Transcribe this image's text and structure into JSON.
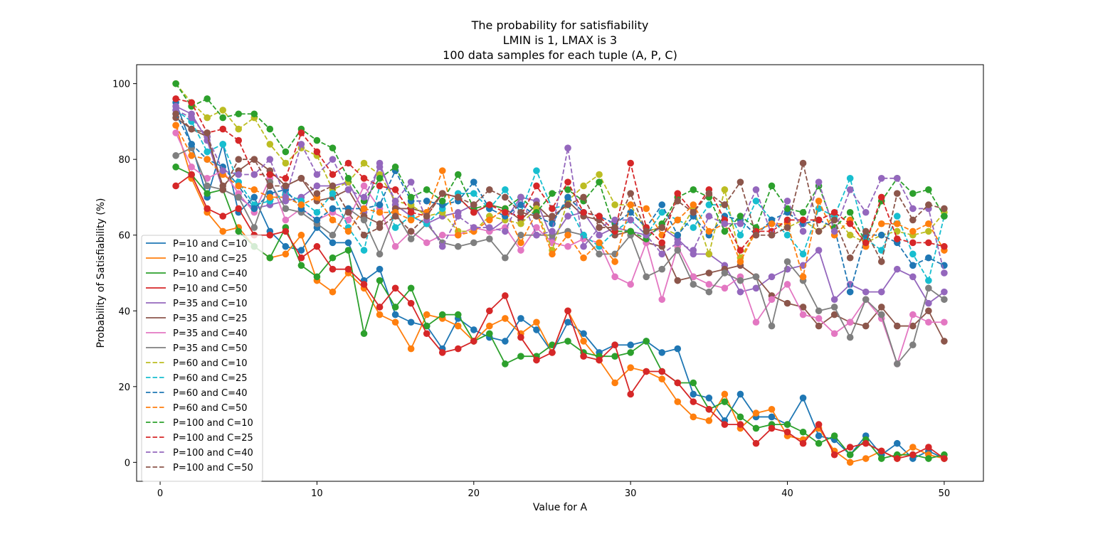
{
  "chart_data": {
    "type": "line",
    "title_lines": [
      "The probability for satisfiability",
      "LMIN is 1, LMAX is 3",
      "100 data samples for each tuple (A, P, C)"
    ],
    "xlabel": "Value for A",
    "ylabel": "Probability of Satisfiability (%)",
    "xlim": [
      -1.5,
      52.5
    ],
    "ylim": [
      -5,
      105
    ],
    "xticks": [
      0,
      10,
      20,
      30,
      40,
      50
    ],
    "yticks": [
      0,
      20,
      40,
      60,
      80,
      100
    ],
    "grid": false,
    "legend_position": "center-left",
    "x": [
      1,
      2,
      3,
      4,
      5,
      6,
      7,
      8,
      9,
      10,
      11,
      12,
      13,
      14,
      15,
      16,
      17,
      18,
      19,
      20,
      21,
      22,
      23,
      24,
      25,
      26,
      27,
      28,
      29,
      30,
      31,
      32,
      33,
      34,
      35,
      36,
      37,
      38,
      39,
      40,
      41,
      42,
      43,
      44,
      45,
      46,
      47,
      48,
      49,
      50
    ],
    "series": [
      {
        "name": "P=10 and C=10",
        "color": "#1f77b4",
        "dash": false,
        "values": [
          95,
          84,
          70,
          84,
          66,
          70,
          61,
          57,
          56,
          62,
          58,
          58,
          48,
          51,
          39,
          37,
          36,
          30,
          38,
          35,
          33,
          32,
          38,
          35,
          29,
          37,
          34,
          29,
          31,
          31,
          32,
          29,
          30,
          18,
          17,
          11,
          18,
          12,
          12,
          10,
          17,
          7,
          6,
          2,
          7,
          2,
          5,
          1,
          3,
          1
        ]
      },
      {
        "name": "P=10 and C=25",
        "color": "#ff7f0e",
        "dash": false,
        "values": [
          89,
          75,
          66,
          61,
          62,
          57,
          54,
          55,
          60,
          48,
          45,
          50,
          46,
          39,
          37,
          30,
          39,
          38,
          36,
          32,
          36,
          38,
          34,
          37,
          29,
          40,
          32,
          27,
          21,
          25,
          24,
          22,
          16,
          12,
          11,
          18,
          9,
          13,
          14,
          7,
          6,
          9,
          3,
          0,
          1,
          3,
          1,
          4,
          2,
          1
        ]
      },
      {
        "name": "P=10 and C=40",
        "color": "#2ca02c",
        "dash": false,
        "values": [
          78,
          76,
          71,
          72,
          61,
          57,
          54,
          62,
          52,
          49,
          54,
          56,
          34,
          48,
          41,
          46,
          36,
          39,
          39,
          32,
          34,
          26,
          28,
          28,
          31,
          32,
          29,
          28,
          28,
          29,
          32,
          24,
          21,
          21,
          14,
          16,
          12,
          9,
          10,
          10,
          8,
          5,
          7,
          2,
          6,
          1,
          2,
          2,
          1,
          2
        ]
      },
      {
        "name": "P=10 and C=50",
        "color": "#d62728",
        "dash": false,
        "values": [
          73,
          76,
          67,
          65,
          67,
          60,
          60,
          61,
          54,
          57,
          51,
          51,
          47,
          41,
          46,
          42,
          34,
          29,
          30,
          32,
          40,
          44,
          33,
          27,
          29,
          40,
          28,
          27,
          31,
          18,
          24,
          24,
          21,
          16,
          14,
          10,
          10,
          5,
          9,
          8,
          5,
          10,
          2,
          4,
          5,
          3,
          1,
          2,
          4,
          1
        ]
      },
      {
        "name": "P=35 and C=10",
        "color": "#9467bd",
        "dash": false,
        "values": [
          94,
          92,
          85,
          72,
          70,
          67,
          68,
          69,
          70,
          73,
          73,
          74,
          66,
          79,
          68,
          65,
          63,
          65,
          66,
          68,
          61,
          64,
          70,
          69,
          59,
          65,
          66,
          60,
          62,
          61,
          60,
          62,
          59,
          55,
          55,
          52,
          45,
          46,
          49,
          51,
          52,
          56,
          43,
          47,
          45,
          45,
          51,
          49,
          42,
          45
        ]
      },
      {
        "name": "P=35 and C=25",
        "color": "#8c564b",
        "dash": false,
        "values": [
          91,
          88,
          86,
          73,
          77,
          80,
          77,
          73,
          75,
          69,
          70,
          72,
          65,
          63,
          67,
          67,
          66,
          71,
          70,
          66,
          68,
          67,
          64,
          68,
          64,
          69,
          65,
          64,
          60,
          61,
          58,
          57,
          48,
          49,
          50,
          51,
          52,
          49,
          44,
          42,
          41,
          36,
          39,
          37,
          36,
          41,
          36,
          36,
          40,
          32
        ]
      },
      {
        "name": "P=35 and C=40",
        "color": "#e377c2",
        "dash": false,
        "values": [
          87,
          78,
          75,
          77,
          71,
          66,
          75,
          64,
          67,
          64,
          66,
          64,
          73,
          67,
          57,
          61,
          58,
          60,
          60,
          62,
          61,
          62,
          56,
          62,
          58,
          57,
          59,
          58,
          49,
          47,
          58,
          43,
          57,
          49,
          47,
          46,
          49,
          37,
          43,
          47,
          39,
          38,
          34,
          37,
          43,
          38,
          26,
          39,
          37,
          37
        ]
      },
      {
        "name": "P=35 and C=50",
        "color": "#7f7f7f",
        "dash": false,
        "values": [
          81,
          83,
          73,
          72,
          70,
          62,
          74,
          67,
          66,
          63,
          60,
          67,
          64,
          55,
          66,
          59,
          63,
          58,
          57,
          58,
          59,
          54,
          60,
          60,
          60,
          61,
          60,
          55,
          55,
          60,
          49,
          51,
          56,
          47,
          45,
          50,
          48,
          49,
          36,
          53,
          48,
          40,
          41,
          33,
          43,
          39,
          26,
          31,
          46,
          43
        ]
      },
      {
        "name": "P=60 and C=10",
        "color": "#bcbd22",
        "dash": true,
        "values": [
          100,
          95,
          91,
          93,
          88,
          91,
          84,
          79,
          83,
          81,
          72,
          74,
          79,
          76,
          69,
          68,
          65,
          66,
          61,
          61,
          65,
          64,
          63,
          67,
          56,
          69,
          73,
          76,
          68,
          68,
          61,
          62,
          60,
          67,
          55,
          72,
          54,
          61,
          63,
          62,
          64,
          61,
          65,
          60,
          58,
          60,
          61,
          60,
          61,
          66
        ]
      },
      {
        "name": "P=60 and C=25",
        "color": "#17becf",
        "dash": true,
        "values": [
          93,
          90,
          82,
          84,
          74,
          68,
          69,
          71,
          69,
          66,
          71,
          62,
          56,
          73,
          62,
          65,
          63,
          67,
          71,
          71,
          67,
          72,
          66,
          77,
          67,
          68,
          60,
          57,
          61,
          64,
          60,
          66,
          64,
          62,
          68,
          68,
          60,
          69,
          64,
          60,
          55,
          67,
          65,
          75,
          59,
          56,
          65,
          55,
          48,
          65
        ]
      },
      {
        "name": "P=60 and C=40",
        "color": "#1f77b4",
        "dash": true,
        "values": [
          92,
          84,
          80,
          78,
          73,
          67,
          71,
          72,
          67,
          64,
          67,
          67,
          67,
          68,
          77,
          69,
          69,
          68,
          69,
          74,
          67,
          65,
          68,
          65,
          63,
          70,
          66,
          65,
          63,
          66,
          62,
          68,
          60,
          65,
          60,
          65,
          64,
          60,
          64,
          66,
          63,
          64,
          62,
          45,
          60,
          60,
          58,
          52,
          54,
          52
        ]
      },
      {
        "name": "P=60 and C=50",
        "color": "#ff7f0e",
        "dash": true,
        "values": [
          89,
          81,
          80,
          76,
          73,
          72,
          70,
          70,
          68,
          70,
          64,
          61,
          67,
          66,
          66,
          64,
          66,
          77,
          60,
          61,
          64,
          67,
          58,
          66,
          55,
          60,
          54,
          58,
          53,
          68,
          67,
          60,
          64,
          68,
          61,
          63,
          53,
          61,
          63,
          63,
          49,
          69,
          60,
          64,
          57,
          63,
          63,
          61,
          63,
          56
        ]
      },
      {
        "name": "P=100 and C=10",
        "color": "#2ca02c",
        "dash": true,
        "values": [
          100,
          94,
          96,
          91,
          92,
          92,
          88,
          82,
          88,
          85,
          83,
          75,
          69,
          75,
          78,
          70,
          72,
          69,
          76,
          67,
          68,
          67,
          70,
          66,
          71,
          72,
          69,
          74,
          61,
          61,
          59,
          63,
          70,
          72,
          70,
          61,
          65,
          62,
          73,
          67,
          66,
          73,
          62,
          66,
          58,
          69,
          75,
          71,
          72,
          65
        ]
      },
      {
        "name": "P=100 and C=25",
        "color": "#d62728",
        "dash": true,
        "values": [
          96,
          95,
          87,
          88,
          85,
          76,
          76,
          75,
          87,
          82,
          76,
          79,
          75,
          73,
          72,
          66,
          65,
          71,
          70,
          66,
          68,
          66,
          65,
          73,
          67,
          74,
          66,
          65,
          61,
          79,
          62,
          58,
          71,
          66,
          72,
          64,
          56,
          61,
          61,
          64,
          64,
          64,
          66,
          63,
          58,
          70,
          59,
          58,
          58,
          57
        ]
      },
      {
        "name": "P=100 and C=40",
        "color": "#9467bd",
        "dash": true,
        "values": [
          93,
          91,
          86,
          77,
          76,
          76,
          80,
          70,
          84,
          76,
          80,
          72,
          70,
          78,
          69,
          74,
          64,
          57,
          65,
          62,
          62,
          61,
          70,
          60,
          61,
          83,
          57,
          62,
          64,
          64,
          60,
          55,
          58,
          56,
          65,
          63,
          63,
          72,
          60,
          69,
          61,
          74,
          61,
          72,
          66,
          75,
          75,
          67,
          67,
          50
        ]
      },
      {
        "name": "P=100 and C=50",
        "color": "#8c564b",
        "dash": true,
        "values": [
          92,
          88,
          87,
          72,
          80,
          80,
          73,
          73,
          75,
          71,
          73,
          66,
          60,
          62,
          65,
          61,
          65,
          71,
          70,
          68,
          72,
          70,
          66,
          65,
          65,
          68,
          70,
          62,
          62,
          71,
          61,
          62,
          69,
          66,
          71,
          68,
          74,
          60,
          60,
          62,
          79,
          61,
          64,
          54,
          61,
          53,
          71,
          64,
          68,
          67
        ]
      }
    ]
  }
}
